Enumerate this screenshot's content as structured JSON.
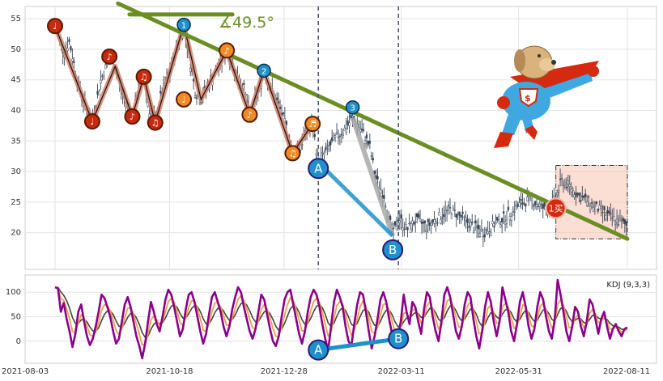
{
  "chart_data": [
    {
      "type": "line",
      "name": "price",
      "candles_visible": true,
      "ylim": [
        14,
        57
      ],
      "y_ticks": [
        "20",
        "25",
        "30",
        "35",
        "40",
        "45",
        "50",
        "55"
      ],
      "x_labels": [
        "2021-08-03",
        "2021-10-18",
        "2021-12-28",
        "2022-03-11",
        "2022-05-31",
        "2022-08-11"
      ],
      "grid": true,
      "price_path": [
        [
          0,
          53.8
        ],
        [
          3,
          49.5
        ],
        [
          5,
          51.2
        ],
        [
          8,
          44.5
        ],
        [
          11,
          40.0
        ],
        [
          13,
          38.2
        ],
        [
          16,
          45.0
        ],
        [
          19,
          48.8
        ],
        [
          21,
          47.2
        ],
        [
          24,
          42.0
        ],
        [
          27,
          39.0
        ],
        [
          29,
          43.0
        ],
        [
          31,
          45.5
        ],
        [
          33,
          40.0
        ],
        [
          35,
          38.0
        ],
        [
          37,
          42.5
        ],
        [
          40,
          46.0
        ],
        [
          43,
          50.8
        ],
        [
          45,
          54.0
        ],
        [
          47,
          48.5
        ],
        [
          49,
          43.0
        ],
        [
          51,
          41.8
        ],
        [
          54,
          44.6
        ],
        [
          57,
          47.0
        ],
        [
          60,
          49.8
        ],
        [
          63,
          46.5
        ],
        [
          66,
          43.5
        ],
        [
          68,
          39.3
        ],
        [
          71,
          43.0
        ],
        [
          73,
          46.5
        ],
        [
          75,
          44.0
        ],
        [
          78,
          41.0
        ],
        [
          81,
          37.0
        ],
        [
          83,
          33.0
        ],
        [
          86,
          34.5
        ],
        [
          88,
          36.5
        ],
        [
          90,
          37.8
        ],
        [
          92,
          31.5
        ],
        [
          95,
          33.5
        ],
        [
          98,
          35.5
        ],
        [
          101,
          36.8
        ],
        [
          104,
          38.8
        ],
        [
          106,
          37.5
        ],
        [
          108,
          36.0
        ],
        [
          110,
          34.0
        ],
        [
          112,
          29.0
        ],
        [
          115,
          26.0
        ],
        [
          118,
          19.5
        ],
        [
          120,
          22.5
        ],
        [
          123,
          20.5
        ],
        [
          126,
          22.0
        ],
        [
          130,
          21.0
        ],
        [
          134,
          22.5
        ],
        [
          138,
          23.8
        ],
        [
          142,
          22.5
        ],
        [
          146,
          21.0
        ],
        [
          150,
          20.0
        ],
        [
          154,
          21.5
        ],
        [
          158,
          22.8
        ],
        [
          162,
          24.5
        ],
        [
          166,
          25.5
        ],
        [
          170,
          24.2
        ],
        [
          172,
          23.5
        ],
        [
          175,
          25.8
        ],
        [
          177,
          28.5
        ],
        [
          180,
          27.5
        ],
        [
          183,
          26.0
        ],
        [
          186,
          25.2
        ],
        [
          190,
          23.8
        ],
        [
          194,
          22.5
        ],
        [
          197,
          21.8
        ],
        [
          200,
          21.2
        ]
      ],
      "x_range": [
        0,
        200
      ],
      "trendlines": [
        {
          "color": "#6b8e23",
          "from": [
            22,
            57.5
          ],
          "to": [
            200,
            19.0
          ],
          "width": 5
        },
        {
          "color": "#6b8e23",
          "from": [
            26,
            55.7
          ],
          "to": [
            62,
            55.7
          ],
          "width": 5
        }
      ],
      "angle_annotation": "∡49.5°",
      "swing_lines": [
        {
          "color": "#d4826a",
          "points": [
            [
              0,
              53.8
            ],
            [
              13,
              38.2
            ],
            [
              21,
              47.2
            ],
            [
              27,
              39.0
            ],
            [
              31,
              45.5
            ],
            [
              35,
              38.0
            ],
            [
              45,
              54.0
            ],
            [
              51,
              41.8
            ],
            [
              60,
              49.8
            ],
            [
              68,
              39.3
            ],
            [
              73,
              46.5
            ],
            [
              83,
              33.0
            ],
            [
              90,
              37.8
            ]
          ]
        },
        {
          "color": "#a8a8a8",
          "points": [
            [
              104,
              38.8
            ],
            [
              118,
              19.5
            ]
          ]
        },
        {
          "color": "#1e90cc",
          "points": [
            [
              92,
              31.5
            ],
            [
              118,
              19.5
            ]
          ]
        }
      ],
      "markers": [
        {
          "label": "♩",
          "x": 0,
          "y": 53.8,
          "color": "#c92a0f",
          "kind": "note"
        },
        {
          "label": "♪",
          "x": 19,
          "y": 48.8,
          "color": "#c92a0f",
          "kind": "note"
        },
        {
          "label": "♩",
          "x": 13,
          "y": 38.2,
          "color": "#c92a0f",
          "kind": "note"
        },
        {
          "label": "♪",
          "x": 27,
          "y": 39.0,
          "color": "#c92a0f",
          "kind": "note"
        },
        {
          "label": "♫",
          "x": 31,
          "y": 45.5,
          "color": "#c92a0f",
          "kind": "note"
        },
        {
          "label": "♫",
          "x": 35,
          "y": 38.0,
          "color": "#c92a0f",
          "kind": "note"
        },
        {
          "label": "1",
          "x": 45,
          "y": 54.0,
          "color": "#1e90cc",
          "kind": "num"
        },
        {
          "label": "♩",
          "x": 45,
          "y": 41.8,
          "color": "#f08a24",
          "kind": "note"
        },
        {
          "label": "♪",
          "x": 60,
          "y": 49.8,
          "color": "#f08a24",
          "kind": "note"
        },
        {
          "label": "2",
          "x": 73,
          "y": 46.5,
          "color": "#1e90cc",
          "kind": "num"
        },
        {
          "label": "♪",
          "x": 68,
          "y": 39.3,
          "color": "#f08a24",
          "kind": "note"
        },
        {
          "label": "♫",
          "x": 83,
          "y": 33.0,
          "color": "#f08a24",
          "kind": "note"
        },
        {
          "label": "♬",
          "x": 90,
          "y": 37.8,
          "color": "#f08a24",
          "kind": "note"
        },
        {
          "label": "3",
          "x": 104,
          "y": 40.5,
          "color": "#1e90cc",
          "kind": "num"
        },
        {
          "label": "A",
          "x": 92,
          "y": 30.5,
          "color": "#1e90cc",
          "kind": "letter"
        },
        {
          "label": "B",
          "x": 118,
          "y": 17.2,
          "color": "#1e90cc",
          "kind": "letter"
        },
        {
          "label": "1买",
          "x": 175,
          "y": 24.0,
          "color": "#d62a10",
          "kind": "buy"
        }
      ],
      "vlines_x": [
        92,
        120
      ],
      "highlight_box": {
        "x": [
          175,
          200
        ],
        "y": [
          19.0,
          31.0
        ],
        "color": "#f7c2b0"
      }
    },
    {
      "type": "line",
      "name": "kdj",
      "legend": "KDJ (9,3,3)",
      "ylim": [
        -45,
        135
      ],
      "y_ticks": [
        "0",
        "50",
        "100"
      ],
      "grid": true,
      "series": [
        {
          "key": "J",
          "color": "#8b008b",
          "width": 2.6
        },
        {
          "key": "D",
          "color": "#f0a040",
          "width": 1.8
        },
        {
          "key": "K",
          "color": "#444444",
          "width": 1.6
        }
      ],
      "j_values": [
        110,
        108,
        60,
        78,
        45,
        20,
        -12,
        15,
        60,
        75,
        40,
        10,
        -8,
        5,
        30,
        60,
        95,
        88,
        70,
        50,
        20,
        -5,
        5,
        40,
        75,
        90,
        70,
        40,
        10,
        -10,
        -35,
        -5,
        40,
        80,
        60,
        35,
        20,
        50,
        85,
        105,
        95,
        70,
        40,
        10,
        25,
        65,
        95,
        100,
        80,
        50,
        20,
        -5,
        15,
        55,
        90,
        100,
        80,
        60,
        30,
        10,
        30,
        65,
        90,
        110,
        100,
        70,
        45,
        20,
        5,
        25,
        60,
        95,
        85,
        55,
        25,
        0,
        -10,
        10,
        50,
        85,
        100,
        105,
        75,
        45,
        15,
        -5,
        20,
        60,
        90,
        105,
        95,
        70,
        35,
        5,
        -20,
        30,
        80,
        105,
        90,
        70,
        30,
        0,
        -10,
        35,
        75,
        100,
        95,
        60,
        20,
        -15,
        10,
        45,
        85,
        100,
        80,
        45,
        15,
        -10,
        10,
        40,
        95,
        60,
        35,
        80,
        70,
        40,
        15,
        65,
        100,
        90,
        50,
        20,
        0,
        40,
        95,
        110,
        90,
        55,
        20,
        5,
        30,
        75,
        100,
        90,
        45,
        10,
        -15,
        20,
        70,
        100,
        80,
        40,
        10,
        40,
        110,
        85,
        60,
        20,
        0,
        35,
        80,
        100,
        70,
        30,
        5,
        25,
        70,
        100,
        85,
        50,
        20,
        5,
        45,
        125,
        95,
        60,
        20,
        0,
        30,
        70,
        60,
        30,
        10,
        40,
        85,
        75,
        45,
        15,
        45,
        60,
        30,
        5,
        25,
        35,
        20,
        10,
        25,
        28
      ],
      "ab_line": {
        "color": "#1e90cc",
        "from": [
          92,
          -18
        ],
        "to": [
          120,
          5
        ]
      },
      "markers": [
        {
          "label": "A",
          "x": 92,
          "y": -18,
          "color": "#1e90cc"
        },
        {
          "label": "B",
          "x": 120,
          "y": 5,
          "color": "#1e90cc"
        }
      ]
    }
  ]
}
